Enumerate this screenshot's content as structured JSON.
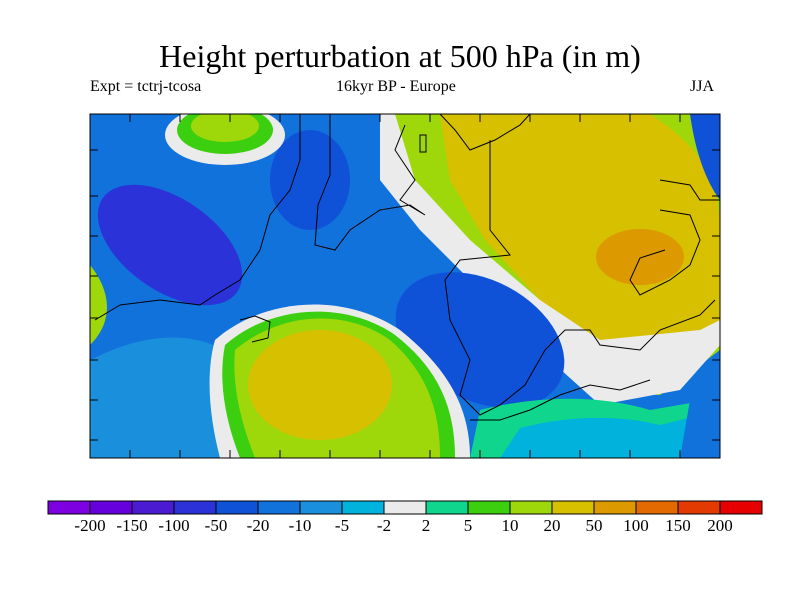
{
  "title": "Height perturbation at 500 hPa (in m)",
  "left_label": "Expt = tctrj-tcosa",
  "center_label": "16kyr BP - Europe",
  "right_label": "JJA",
  "colorbar": {
    "colors": [
      "#7d00e0",
      "#6600dd",
      "#4a1bd0",
      "#2b33d8",
      "#0f52d8",
      "#1272dc",
      "#1a90dc",
      "#00b2dc",
      "#ebebeb",
      "#0fd68c",
      "#3ccf0f",
      "#9fd80a",
      "#d6c000",
      "#dc9900",
      "#e26a00",
      "#e23a00",
      "#e60000"
    ],
    "labels": [
      "-200",
      "-150",
      "-100",
      "-50",
      "-20",
      "-10",
      "-5",
      "-2",
      "2",
      "5",
      "10",
      "20",
      "50",
      "100",
      "150",
      "200"
    ]
  }
}
